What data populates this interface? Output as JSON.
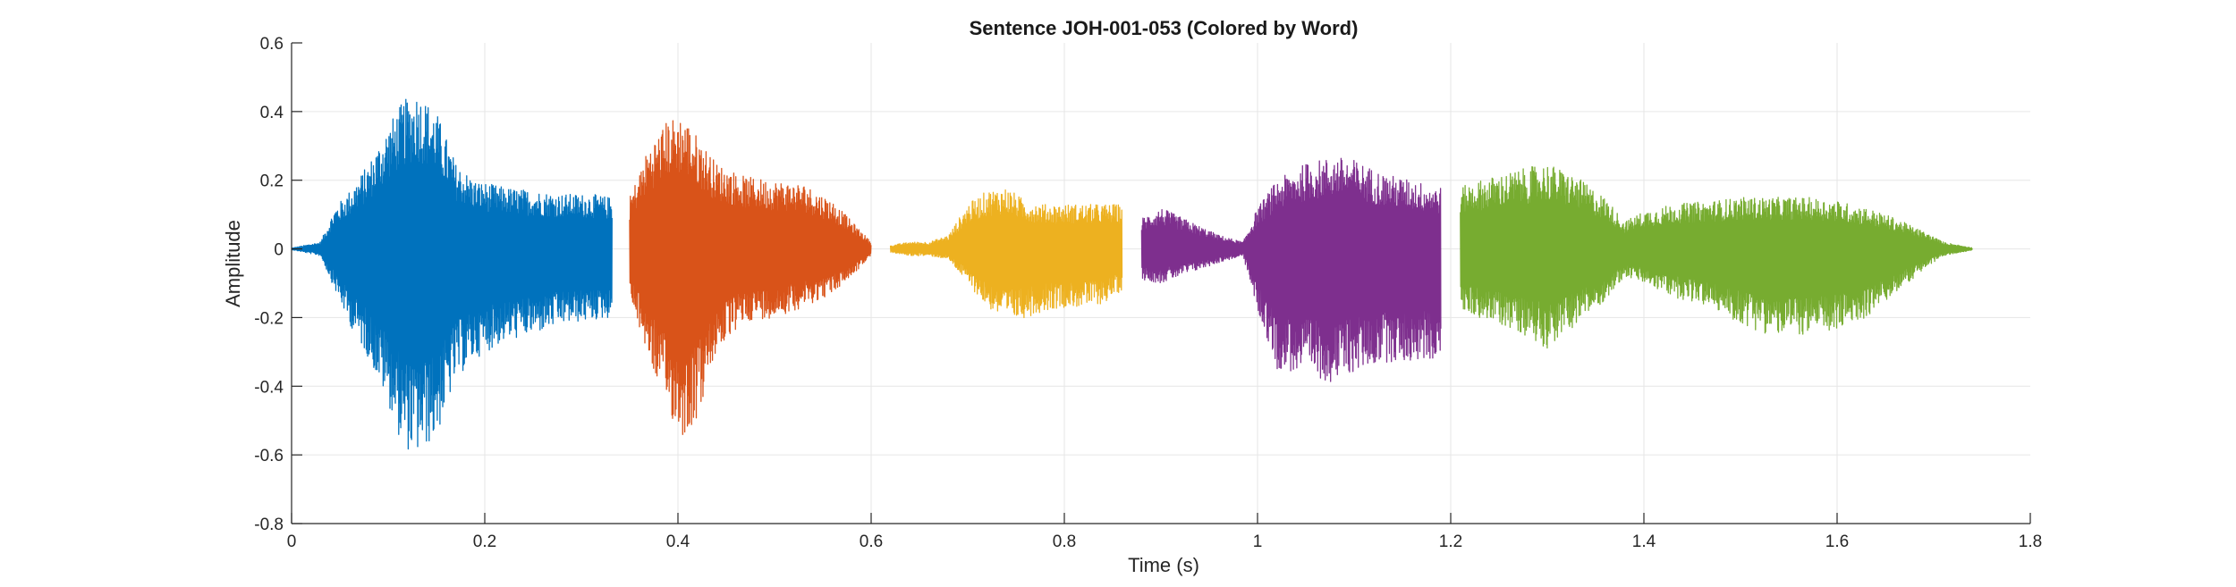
{
  "chart_data": {
    "type": "line",
    "title": "Sentence JOH-001-053 (Colored by Word)",
    "xlabel": "Time (s)",
    "ylabel": "Amplitude",
    "xlim": [
      0,
      1.8
    ],
    "ylim": [
      -0.8,
      0.6
    ],
    "xticks": [
      0,
      0.2,
      0.4,
      0.6,
      0.8,
      1,
      1.2,
      1.4,
      1.6,
      1.8
    ],
    "xtick_labels": [
      "0",
      "0.2",
      "0.4",
      "0.6",
      "0.8",
      "1",
      "1.2",
      "1.4",
      "1.6",
      "1.8"
    ],
    "yticks": [
      -0.8,
      -0.6,
      -0.4,
      -0.2,
      0,
      0.2,
      0.4,
      0.6
    ],
    "ytick_labels": [
      "-0.8",
      "-0.6",
      "-0.4",
      "-0.2",
      "0",
      "0.2",
      "0.4",
      "0.6"
    ],
    "grid": true,
    "series": [
      {
        "color": "#0072BD",
        "x": [
          0.0,
          0.03,
          0.045,
          0.06,
          0.08,
          0.1,
          0.115,
          0.13,
          0.15,
          0.17,
          0.19,
          0.22,
          0.25,
          0.28,
          0.31,
          0.332
        ],
        "upper": [
          0.002,
          0.02,
          0.12,
          0.17,
          0.25,
          0.36,
          0.43,
          0.46,
          0.4,
          0.25,
          0.2,
          0.18,
          0.17,
          0.16,
          0.16,
          0.15
        ],
        "lower": [
          -0.002,
          -0.02,
          -0.12,
          -0.22,
          -0.32,
          -0.45,
          -0.58,
          -0.6,
          -0.55,
          -0.38,
          -0.32,
          -0.27,
          -0.25,
          -0.22,
          -0.21,
          -0.2
        ]
      },
      {
        "color": "#D95319",
        "x": [
          0.35,
          0.37,
          0.39,
          0.405,
          0.42,
          0.44,
          0.47,
          0.5,
          0.53,
          0.56,
          0.58,
          0.6
        ],
        "upper": [
          0.15,
          0.3,
          0.38,
          0.39,
          0.33,
          0.25,
          0.21,
          0.2,
          0.19,
          0.14,
          0.08,
          0.02
        ],
        "lower": [
          -0.15,
          -0.32,
          -0.48,
          -0.55,
          -0.5,
          -0.3,
          -0.21,
          -0.2,
          -0.17,
          -0.13,
          -0.08,
          -0.02
        ]
      },
      {
        "color": "#EDB120",
        "x": [
          0.62,
          0.64,
          0.66,
          0.68,
          0.7,
          0.72,
          0.74,
          0.76,
          0.78,
          0.8,
          0.82,
          0.84,
          0.86
        ],
        "upper": [
          0.01,
          0.02,
          0.02,
          0.04,
          0.13,
          0.17,
          0.18,
          0.14,
          0.13,
          0.13,
          0.13,
          0.13,
          0.13
        ],
        "lower": [
          -0.01,
          -0.02,
          -0.02,
          -0.03,
          -0.1,
          -0.17,
          -0.21,
          -0.2,
          -0.18,
          -0.17,
          -0.17,
          -0.16,
          -0.12
        ]
      },
      {
        "color": "#7E2F8E",
        "x": [
          0.88,
          0.9,
          0.93,
          0.96,
          0.985,
          1.0,
          1.02,
          1.05,
          1.08,
          1.1,
          1.13,
          1.16,
          1.19
        ],
        "upper": [
          0.09,
          0.12,
          0.08,
          0.04,
          0.02,
          0.12,
          0.2,
          0.25,
          0.27,
          0.26,
          0.22,
          0.2,
          0.18
        ],
        "lower": [
          -0.09,
          -0.1,
          -0.07,
          -0.04,
          -0.02,
          -0.18,
          -0.35,
          -0.37,
          -0.39,
          -0.36,
          -0.33,
          -0.33,
          -0.32
        ]
      },
      {
        "color": "#77AC30",
        "x": [
          1.21,
          1.23,
          1.27,
          1.3,
          1.33,
          1.36,
          1.38,
          1.4,
          1.43,
          1.47,
          1.5,
          1.53,
          1.57,
          1.6,
          1.63,
          1.66,
          1.69,
          1.71,
          1.74
        ],
        "upper": [
          0.18,
          0.2,
          0.23,
          0.25,
          0.21,
          0.15,
          0.08,
          0.11,
          0.13,
          0.14,
          0.15,
          0.15,
          0.15,
          0.14,
          0.12,
          0.09,
          0.05,
          0.02,
          0.003
        ],
        "lower": [
          -0.18,
          -0.2,
          -0.24,
          -0.29,
          -0.22,
          -0.15,
          -0.08,
          -0.1,
          -0.14,
          -0.17,
          -0.22,
          -0.25,
          -0.25,
          -0.24,
          -0.2,
          -0.13,
          -0.06,
          -0.02,
          -0.003
        ]
      }
    ]
  }
}
